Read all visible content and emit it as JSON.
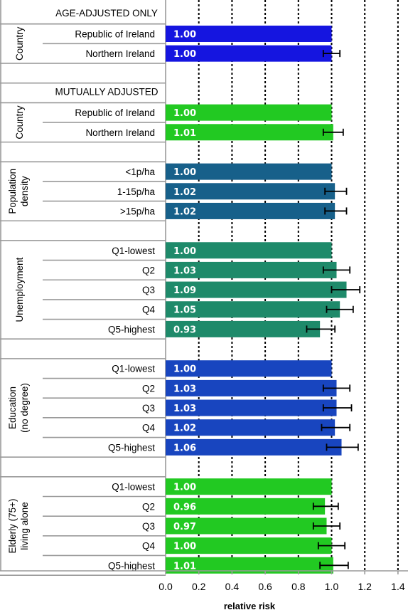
{
  "chart_data": {
    "type": "bar",
    "orientation": "horizontal",
    "xlabel": "relative risk",
    "xlim": [
      0,
      1.4
    ],
    "x_ticks": [
      "0.0",
      "0.2",
      "0.4",
      "0.6",
      "0.8",
      "1.0",
      "1.2",
      "1.4"
    ],
    "grid": "dotted vertical lines",
    "sections": [
      {
        "title": "AGE-ADJUSTED ONLY"
      },
      {
        "group": "Country",
        "color": "#1515E0",
        "rows": [
          {
            "label": "Republic of Ireland",
            "value": 1.0,
            "value_label": "1.00",
            "ci": null
          },
          {
            "label": "Northern Ireland",
            "value": 1.0,
            "value_label": "1.00",
            "ci": [
              0.95,
              1.05
            ]
          }
        ]
      },
      {
        "title": "MUTUALLY ADJUSTED"
      },
      {
        "group": "Country",
        "color": "#22C922",
        "rows": [
          {
            "label": "Republic of Ireland",
            "value": 1.0,
            "value_label": "1.00",
            "ci": null
          },
          {
            "label": "Northern Ireland",
            "value": 1.01,
            "value_label": "1.01",
            "ci": [
              0.95,
              1.07
            ]
          }
        ]
      },
      {
        "group": "Population density",
        "color": "#17608A",
        "rows": [
          {
            "label": "<1p/ha",
            "value": 1.0,
            "value_label": "1.00",
            "ci": null
          },
          {
            "label": "1-15p/ha",
            "value": 1.02,
            "value_label": "1.02",
            "ci": [
              0.96,
              1.09
            ]
          },
          {
            "label": ">15p/ha",
            "value": 1.02,
            "value_label": "1.02",
            "ci": [
              0.96,
              1.09
            ]
          }
        ]
      },
      {
        "group": "Unemployment",
        "color": "#1E8A6A",
        "rows": [
          {
            "label": "Q1-lowest",
            "value": 1.0,
            "value_label": "1.00",
            "ci": null
          },
          {
            "label": "Q2",
            "value": 1.03,
            "value_label": "1.03",
            "ci": [
              0.95,
              1.11
            ]
          },
          {
            "label": "Q3",
            "value": 1.09,
            "value_label": "1.09",
            "ci": [
              1.0,
              1.17
            ]
          },
          {
            "label": "Q4",
            "value": 1.05,
            "value_label": "1.05",
            "ci": [
              0.97,
              1.13
            ]
          },
          {
            "label": "Q5-highest",
            "value": 0.93,
            "value_label": "0.93",
            "ci": [
              0.85,
              1.02
            ]
          }
        ]
      },
      {
        "group": "Education (no degree)",
        "color": "#1845BF",
        "rows": [
          {
            "label": "Q1-lowest",
            "value": 1.0,
            "value_label": "1.00",
            "ci": null
          },
          {
            "label": "Q2",
            "value": 1.03,
            "value_label": "1.03",
            "ci": [
              0.95,
              1.11
            ]
          },
          {
            "label": "Q3",
            "value": 1.03,
            "value_label": "1.03",
            "ci": [
              0.95,
              1.12
            ]
          },
          {
            "label": "Q4",
            "value": 1.02,
            "value_label": "1.02",
            "ci": [
              0.94,
              1.11
            ]
          },
          {
            "label": "Q5-highest",
            "value": 1.06,
            "value_label": "1.06",
            "ci": [
              0.97,
              1.16
            ]
          }
        ]
      },
      {
        "group": "Elderly (75+) living alone",
        "color": "#22C922",
        "rows": [
          {
            "label": "Q1-lowest",
            "value": 1.0,
            "value_label": "1.00",
            "ci": null
          },
          {
            "label": "Q2",
            "value": 0.96,
            "value_label": "0.96",
            "ci": [
              0.89,
              1.04
            ]
          },
          {
            "label": "Q3",
            "value": 0.97,
            "value_label": "0.97",
            "ci": [
              0.89,
              1.05
            ]
          },
          {
            "label": "Q4",
            "value": 1.0,
            "value_label": "1.00",
            "ci": [
              0.92,
              1.08
            ]
          },
          {
            "label": "Q5-highest",
            "value": 1.01,
            "value_label": "1.01",
            "ci": [
              0.93,
              1.1
            ]
          }
        ]
      }
    ]
  }
}
